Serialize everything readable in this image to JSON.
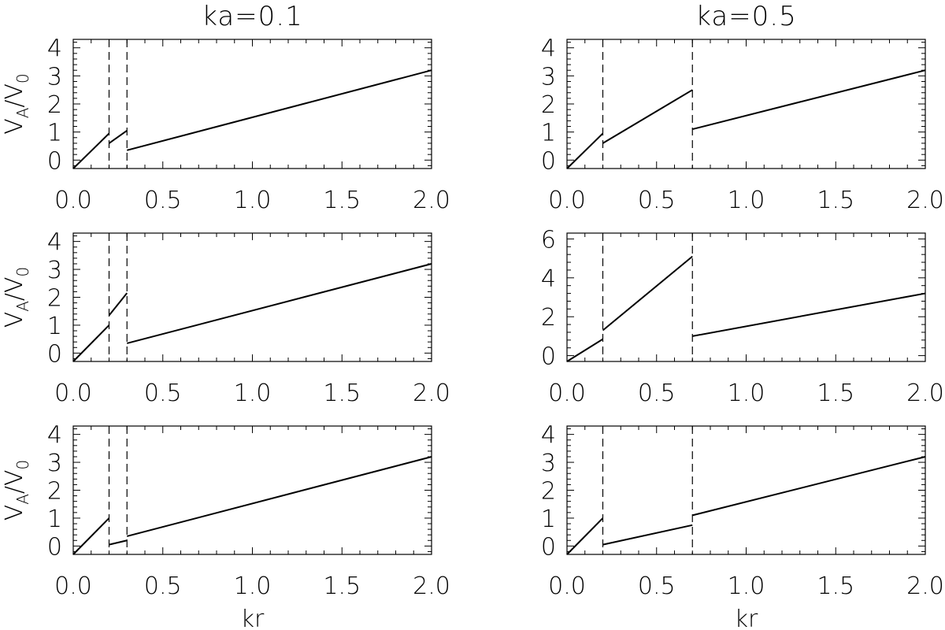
{
  "chart_data": [
    {
      "type": "line",
      "title": "ka=0.1",
      "xlabel": "",
      "ylabel": "V_A/V_0",
      "xlim": [
        0,
        2
      ],
      "ylim": [
        -0.3,
        4.3
      ],
      "yticks": [
        0,
        1,
        2,
        3,
        4
      ],
      "xticks": [
        "0.0",
        "0.5",
        "1.0",
        "1.5",
        "2.0"
      ],
      "dashed_x": [
        0.2,
        0.3
      ],
      "segments": [
        [
          [
            0.0,
            -0.3
          ],
          [
            0.2,
            0.95
          ]
        ],
        [
          [
            0.2,
            0.6
          ],
          [
            0.3,
            1.05
          ]
        ],
        [
          [
            0.3,
            0.35
          ],
          [
            2.0,
            3.2
          ]
        ]
      ]
    },
    {
      "type": "line",
      "title": "ka=0.5",
      "xlabel": "",
      "ylabel": "",
      "xlim": [
        0,
        2
      ],
      "ylim": [
        -0.3,
        4.3
      ],
      "yticks": [
        0,
        1,
        2,
        3,
        4
      ],
      "xticks": [
        "0.0",
        "0.5",
        "1.0",
        "1.5",
        "2.0"
      ],
      "dashed_x": [
        0.2,
        0.7
      ],
      "segments": [
        [
          [
            0.0,
            -0.3
          ],
          [
            0.2,
            0.95
          ]
        ],
        [
          [
            0.2,
            0.6
          ],
          [
            0.7,
            2.5
          ]
        ],
        [
          [
            0.7,
            1.1
          ],
          [
            2.0,
            3.2
          ]
        ]
      ]
    },
    {
      "type": "line",
      "title": "",
      "xlabel": "",
      "ylabel": "V_A/V_0",
      "xlim": [
        0,
        2
      ],
      "ylim": [
        -0.3,
        4.3
      ],
      "yticks": [
        0,
        1,
        2,
        3,
        4
      ],
      "xticks": [
        "0.0",
        "0.5",
        "1.0",
        "1.5",
        "2.0"
      ],
      "dashed_x": [
        0.2,
        0.3
      ],
      "segments": [
        [
          [
            0.0,
            -0.3
          ],
          [
            0.2,
            1.0
          ]
        ],
        [
          [
            0.2,
            1.35
          ],
          [
            0.3,
            2.15
          ]
        ],
        [
          [
            0.3,
            0.35
          ],
          [
            2.0,
            3.2
          ]
        ]
      ]
    },
    {
      "type": "line",
      "title": "",
      "xlabel": "",
      "ylabel": "",
      "xlim": [
        0,
        2
      ],
      "ylim": [
        -0.3,
        6.3
      ],
      "yticks": [
        0,
        2,
        4,
        6
      ],
      "xticks": [
        "0.0",
        "0.5",
        "1.0",
        "1.5",
        "2.0"
      ],
      "dashed_x": [
        0.2,
        0.7
      ],
      "segments": [
        [
          [
            0.0,
            -0.3
          ],
          [
            0.2,
            0.85
          ]
        ],
        [
          [
            0.2,
            1.3
          ],
          [
            0.7,
            5.1
          ]
        ],
        [
          [
            0.7,
            1.0
          ],
          [
            2.0,
            3.2
          ]
        ]
      ]
    },
    {
      "type": "line",
      "title": "",
      "xlabel": "kr",
      "ylabel": "V_A/V_0",
      "xlim": [
        0,
        2
      ],
      "ylim": [
        -0.3,
        4.3
      ],
      "yticks": [
        0,
        1,
        2,
        3,
        4
      ],
      "xticks": [
        "0.0",
        "0.5",
        "1.0",
        "1.5",
        "2.0"
      ],
      "dashed_x": [
        0.2,
        0.3
      ],
      "segments": [
        [
          [
            0.0,
            -0.3
          ],
          [
            0.2,
            1.0
          ]
        ],
        [
          [
            0.2,
            0.05
          ],
          [
            0.3,
            0.2
          ]
        ],
        [
          [
            0.3,
            0.35
          ],
          [
            2.0,
            3.2
          ]
        ]
      ]
    },
    {
      "type": "line",
      "title": "",
      "xlabel": "kr",
      "ylabel": "",
      "xlim": [
        0,
        2
      ],
      "ylim": [
        -0.3,
        4.3
      ],
      "yticks": [
        0,
        1,
        2,
        3,
        4
      ],
      "xticks": [
        "0.0",
        "0.5",
        "1.0",
        "1.5",
        "2.0"
      ],
      "dashed_x": [
        0.2,
        0.7
      ],
      "segments": [
        [
          [
            0.0,
            -0.3
          ],
          [
            0.2,
            1.0
          ]
        ],
        [
          [
            0.2,
            0.05
          ],
          [
            0.7,
            0.75
          ]
        ],
        [
          [
            0.7,
            1.1
          ],
          [
            2.0,
            3.2
          ]
        ]
      ]
    }
  ]
}
